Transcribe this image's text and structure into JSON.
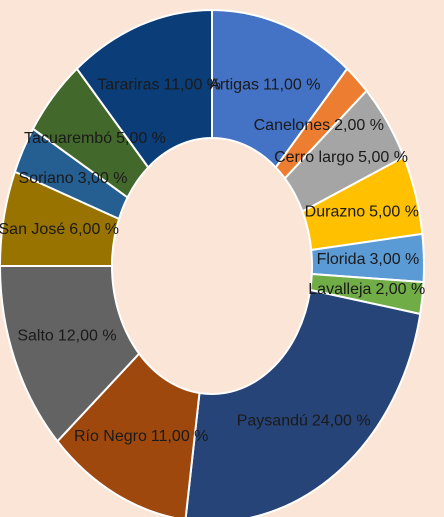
{
  "chart_data": {
    "type": "donut",
    "categories": [
      "Artigas",
      "Canelones",
      "Cerro largo",
      "Durazno",
      "Florida",
      "Lavalleja",
      "Paysandú",
      "Río Negro",
      "Salto",
      "San José",
      "Soriano",
      "Tacuarembó",
      "Tarariras"
    ],
    "values": [
      11,
      2,
      5,
      5,
      3,
      2,
      24,
      11,
      12,
      6,
      3,
      5,
      11
    ],
    "value_labels": [
      "11,00 %",
      "2,00 %",
      "5,00 %",
      "5,00 %",
      "3,00 %",
      "2,00 %",
      "24,00 %",
      "11,00 %",
      "12,00 %",
      "6,00 %",
      "3,00 %",
      "5,00 %",
      "11,00 %"
    ],
    "colors": [
      "#4472c4",
      "#ed7d31",
      "#a5a5a5",
      "#ffc000",
      "#5b9bd5",
      "#70ad47",
      "#264478",
      "#9e480e",
      "#636363",
      "#997300",
      "#255e91",
      "#43682b",
      "#0b3d78"
    ]
  }
}
